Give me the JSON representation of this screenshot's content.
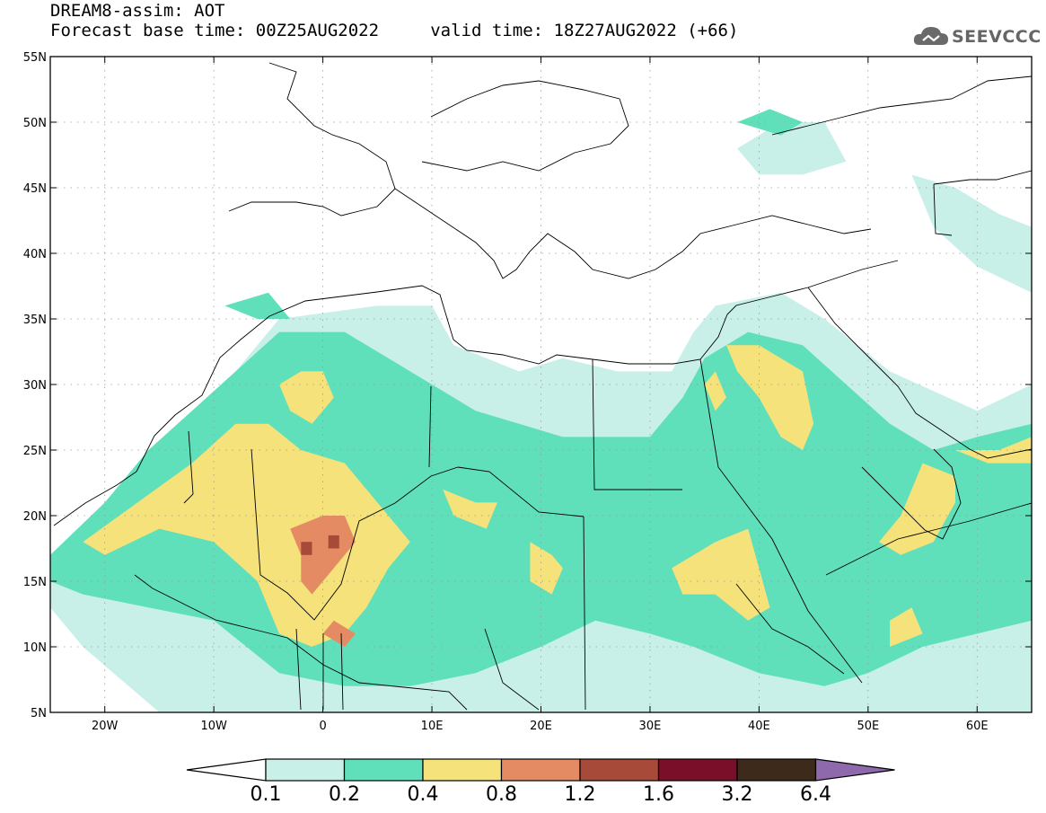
{
  "header": {
    "title": "DREAM8-assim: AOT",
    "subtitle": "Forecast base time: 00Z25AUG2022     valid time: 18Z27AUG2022 (+66)"
  },
  "logo": {
    "text": "SEEVCCC",
    "icon": "cloud-icon",
    "color": "#666666"
  },
  "map": {
    "projection": "lat-lon",
    "lon_range": [
      -25,
      65
    ],
    "lat_range": [
      5,
      55
    ],
    "lat_ticks": [
      {
        "value": 55,
        "label": "55N"
      },
      {
        "value": 50,
        "label": "50N"
      },
      {
        "value": 45,
        "label": "45N"
      },
      {
        "value": 40,
        "label": "40N"
      },
      {
        "value": 35,
        "label": "35N"
      },
      {
        "value": 30,
        "label": "30N"
      },
      {
        "value": 25,
        "label": "25N"
      },
      {
        "value": 20,
        "label": "20N"
      },
      {
        "value": 15,
        "label": "15N"
      },
      {
        "value": 10,
        "label": "10N"
      },
      {
        "value": 5,
        "label": "5N"
      }
    ],
    "lon_ticks": [
      {
        "value": -20,
        "label": "20W"
      },
      {
        "value": -10,
        "label": "10W"
      },
      {
        "value": 0,
        "label": "0"
      },
      {
        "value": 10,
        "label": "10E"
      },
      {
        "value": 20,
        "label": "20E"
      },
      {
        "value": 30,
        "label": "30E"
      },
      {
        "value": 40,
        "label": "40E"
      },
      {
        "value": 50,
        "label": "50E"
      },
      {
        "value": 60,
        "label": "60E"
      }
    ],
    "grid": true,
    "fields": [
      {
        "level": 0.1,
        "color": "#c8f0e8",
        "polygons": [
          [
            [
              -25,
              16
            ],
            [
              -20,
              20
            ],
            [
              -15,
              25
            ],
            [
              -10,
              29
            ],
            [
              -7,
              32
            ],
            [
              -4,
              35
            ],
            [
              5,
              36
            ],
            [
              10,
              36
            ],
            [
              12,
              33
            ],
            [
              18,
              31
            ],
            [
              22,
              32
            ],
            [
              27,
              31
            ],
            [
              32,
              31
            ],
            [
              34,
              34
            ],
            [
              36,
              36
            ],
            [
              42,
              37
            ],
            [
              46,
              35
            ],
            [
              52,
              31
            ],
            [
              60,
              28
            ],
            [
              65,
              30
            ],
            [
              65,
              5
            ],
            [
              -15,
              5
            ],
            [
              -22,
              10
            ],
            [
              -25,
              13
            ]
          ],
          [
            [
              38,
              48
            ],
            [
              42,
              50
            ],
            [
              46,
              50
            ],
            [
              48,
              47
            ],
            [
              44,
              46
            ],
            [
              40,
              46
            ]
          ],
          [
            [
              54,
              46
            ],
            [
              58,
              45
            ],
            [
              62,
              43
            ],
            [
              65,
              42
            ],
            [
              65,
              37
            ],
            [
              60,
              39
            ],
            [
              56,
              42
            ]
          ]
        ]
      },
      {
        "level": 0.2,
        "color": "#5fe0bb",
        "polygons": [
          [
            [
              -25,
              17
            ],
            [
              -20,
              21
            ],
            [
              -16,
              25
            ],
            [
              -12,
              28
            ],
            [
              -8,
              31
            ],
            [
              -4,
              34
            ],
            [
              2,
              34
            ],
            [
              6,
              32
            ],
            [
              10,
              30
            ],
            [
              14,
              28
            ],
            [
              18,
              27
            ],
            [
              22,
              26
            ],
            [
              26,
              26
            ],
            [
              30,
              26
            ],
            [
              33,
              29
            ],
            [
              35,
              32
            ],
            [
              39,
              34
            ],
            [
              44,
              33
            ],
            [
              48,
              30
            ],
            [
              52,
              27
            ],
            [
              56,
              25
            ],
            [
              60,
              26
            ],
            [
              65,
              27
            ],
            [
              65,
              12
            ],
            [
              60,
              11
            ],
            [
              55,
              10
            ],
            [
              50,
              8
            ],
            [
              46,
              7
            ],
            [
              40,
              8
            ],
            [
              34,
              10
            ],
            [
              30,
              11
            ],
            [
              25,
              12
            ],
            [
              20,
              10
            ],
            [
              14,
              8
            ],
            [
              8,
              7
            ],
            [
              2,
              7
            ],
            [
              -4,
              8
            ],
            [
              -10,
              12
            ],
            [
              -16,
              13
            ],
            [
              -22,
              14
            ],
            [
              -25,
              15
            ]
          ],
          [
            [
              -9,
              36
            ],
            [
              -6,
              35
            ],
            [
              -3,
              35
            ],
            [
              -5,
              37
            ]
          ],
          [
            [
              38,
              50
            ],
            [
              41,
              51
            ],
            [
              44,
              50
            ],
            [
              42,
              49
            ]
          ]
        ]
      },
      {
        "level": 0.4,
        "color": "#f5e27a",
        "polygons": [
          [
            [
              -22,
              18
            ],
            [
              -17,
              21
            ],
            [
              -12,
              24
            ],
            [
              -8,
              27
            ],
            [
              -5,
              27
            ],
            [
              -2,
              25
            ],
            [
              2,
              24
            ],
            [
              4,
              22
            ],
            [
              6,
              20
            ],
            [
              8,
              18
            ],
            [
              6,
              16
            ],
            [
              4,
              13
            ],
            [
              2,
              11
            ],
            [
              -1,
              10
            ],
            [
              -4,
              11
            ],
            [
              -6,
              15
            ],
            [
              -10,
              18
            ],
            [
              -15,
              19
            ],
            [
              -20,
              17
            ]
          ],
          [
            [
              -4,
              30
            ],
            [
              -2,
              31
            ],
            [
              0,
              31
            ],
            [
              1,
              29
            ],
            [
              -1,
              27
            ],
            [
              -3,
              28
            ]
          ],
          [
            [
              11,
              22
            ],
            [
              14,
              21
            ],
            [
              16,
              21
            ],
            [
              15,
              19
            ],
            [
              12,
              20
            ]
          ],
          [
            [
              19,
              18
            ],
            [
              21,
              17
            ],
            [
              22,
              16
            ],
            [
              21,
              14
            ],
            [
              19,
              15
            ]
          ],
          [
            [
              32,
              16
            ],
            [
              36,
              18
            ],
            [
              39,
              19
            ],
            [
              40,
              16
            ],
            [
              41,
              13
            ],
            [
              39,
              12
            ],
            [
              36,
              14
            ],
            [
              33,
              14
            ]
          ],
          [
            [
              37,
              33
            ],
            [
              40,
              33
            ],
            [
              44,
              31
            ],
            [
              45,
              27
            ],
            [
              44,
              25
            ],
            [
              42,
              26
            ],
            [
              40,
              29
            ],
            [
              38,
              31
            ]
          ],
          [
            [
              55,
              24
            ],
            [
              58,
              23
            ],
            [
              58,
              21
            ],
            [
              56,
              18
            ],
            [
              53,
              17
            ],
            [
              51,
              18
            ],
            [
              53,
              20
            ]
          ],
          [
            [
              52,
              12
            ],
            [
              54,
              13
            ],
            [
              55,
              11
            ],
            [
              52,
              10
            ]
          ],
          [
            [
              58,
              25
            ],
            [
              62,
              25
            ],
            [
              65,
              26
            ],
            [
              65,
              24
            ],
            [
              61,
              24
            ]
          ],
          [
            [
              35,
              30
            ],
            [
              36,
              31
            ],
            [
              37,
              29
            ],
            [
              36,
              28
            ]
          ]
        ]
      },
      {
        "level": 0.8,
        "color": "#e58b63",
        "polygons": [
          [
            [
              -3,
              19
            ],
            [
              0,
              20
            ],
            [
              2,
              20
            ],
            [
              3,
              18
            ],
            [
              1,
              16
            ],
            [
              -1,
              14
            ],
            [
              -2,
              15
            ],
            [
              -2,
              17
            ]
          ],
          [
            [
              0,
              11
            ],
            [
              1,
              12
            ],
            [
              3,
              11
            ],
            [
              2,
              10
            ]
          ]
        ]
      },
      {
        "level": 1.2,
        "color": "#a84a3a",
        "polygons": [
          [
            [
              -2,
              18
            ],
            [
              -1,
              18
            ],
            [
              -1,
              17
            ],
            [
              -2,
              17
            ]
          ],
          [
            [
              0.5,
              18.5
            ],
            [
              1.5,
              18.5
            ],
            [
              1.5,
              17.5
            ],
            [
              0.5,
              17.5
            ]
          ]
        ]
      }
    ]
  },
  "colorbar": {
    "levels": [
      "0.1",
      "0.2",
      "0.4",
      "0.8",
      "1.2",
      "1.6",
      "3.2",
      "6.4"
    ],
    "colors": [
      "#ffffff",
      "#c8f0e8",
      "#5fe0bb",
      "#f5e27a",
      "#e58b63",
      "#a84a3a",
      "#7a0f2a",
      "#3e2a1a",
      "#8e6aad"
    ]
  }
}
